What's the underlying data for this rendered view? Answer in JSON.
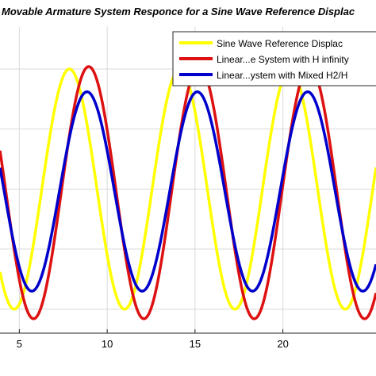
{
  "chart_data": {
    "type": "line",
    "title": "Movable Armature System Responce for a Sine Wave Reference Displac",
    "xlabel": "",
    "ylabel": "",
    "x_range": [
      3.9,
      25.3
    ],
    "x_ticks": [
      5,
      10,
      15,
      20
    ],
    "x_tick_labels": [
      "5",
      "10",
      "15",
      "20"
    ],
    "y_range": [
      -1.2,
      1.35
    ],
    "y_gridlines": [
      -1,
      -0.5,
      0,
      0.5,
      1
    ],
    "grid": true,
    "legend_position": "top-right",
    "series": [
      {
        "name": "Sine Wave Reference Displac",
        "color": "#ffff00",
        "amplitude": 1.0,
        "period": 6.28,
        "first_peak_x": 7.85,
        "offset": 0.0
      },
      {
        "name": "Linear...e System with H infinity",
        "color": "#dd1111",
        "amplitude": 1.05,
        "period": 6.28,
        "first_peak_x": 8.95,
        "offset": -0.03
      },
      {
        "name": "Linear...ystem with Mixed H2/H",
        "color": "#0000cc",
        "amplitude": 0.83,
        "period": 6.28,
        "first_peak_x": 8.85,
        "offset": -0.02
      }
    ]
  }
}
